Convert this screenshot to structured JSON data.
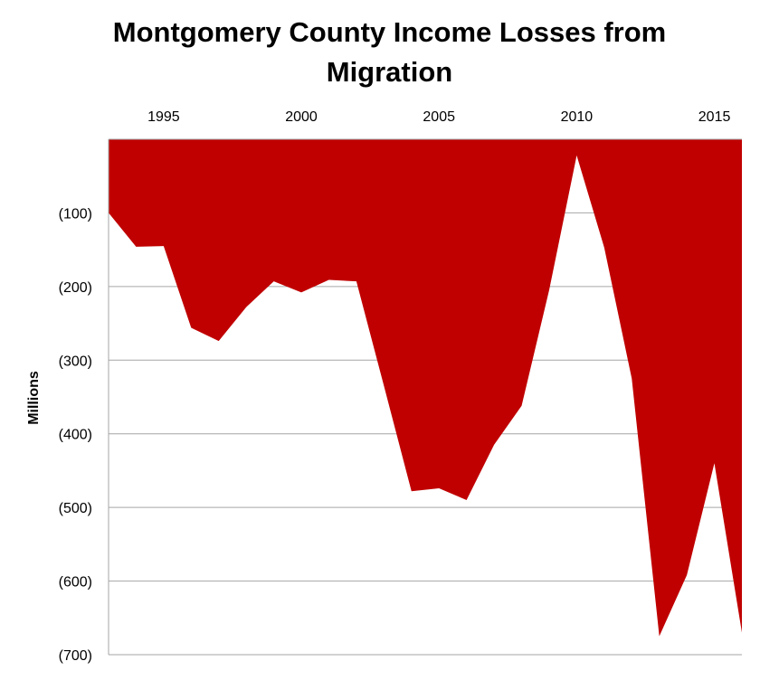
{
  "chart_data": {
    "type": "area",
    "title_lines": [
      "Montgomery County Income Losses from",
      "Migration"
    ],
    "ylabel": "Millions",
    "x": [
      1993,
      1994,
      1995,
      1996,
      1997,
      1998,
      1999,
      2000,
      2001,
      2002,
      2003,
      2004,
      2005,
      2006,
      2007,
      2008,
      2009,
      2010,
      2011,
      2012,
      2013,
      2014,
      2015,
      2016
    ],
    "values": [
      -100,
      -146,
      -145,
      -256,
      -274,
      -228,
      -193,
      -208,
      -191,
      -193,
      -335,
      -478,
      -474,
      -490,
      -415,
      -362,
      -205,
      -22,
      -147,
      -325,
      -675,
      -592,
      -440,
      -670
    ],
    "xticks": [
      1995,
      2000,
      2005,
      2010,
      2015
    ],
    "xtick_labels": [
      "1995",
      "2000",
      "2005",
      "2010",
      "2015"
    ],
    "xlim": [
      1993,
      2016
    ],
    "yticks": [
      -100,
      -200,
      -300,
      -400,
      -500,
      -600,
      -700
    ],
    "ytick_labels": [
      "(100)",
      "(200)",
      "(300)",
      "(400)",
      "(500)",
      "(600)",
      "(700)"
    ],
    "ylim": [
      -700,
      0
    ],
    "x_axis_position": "top",
    "grid": "horizontal",
    "fill_color": "#C00000",
    "grid_color": "#A6A6A6"
  }
}
